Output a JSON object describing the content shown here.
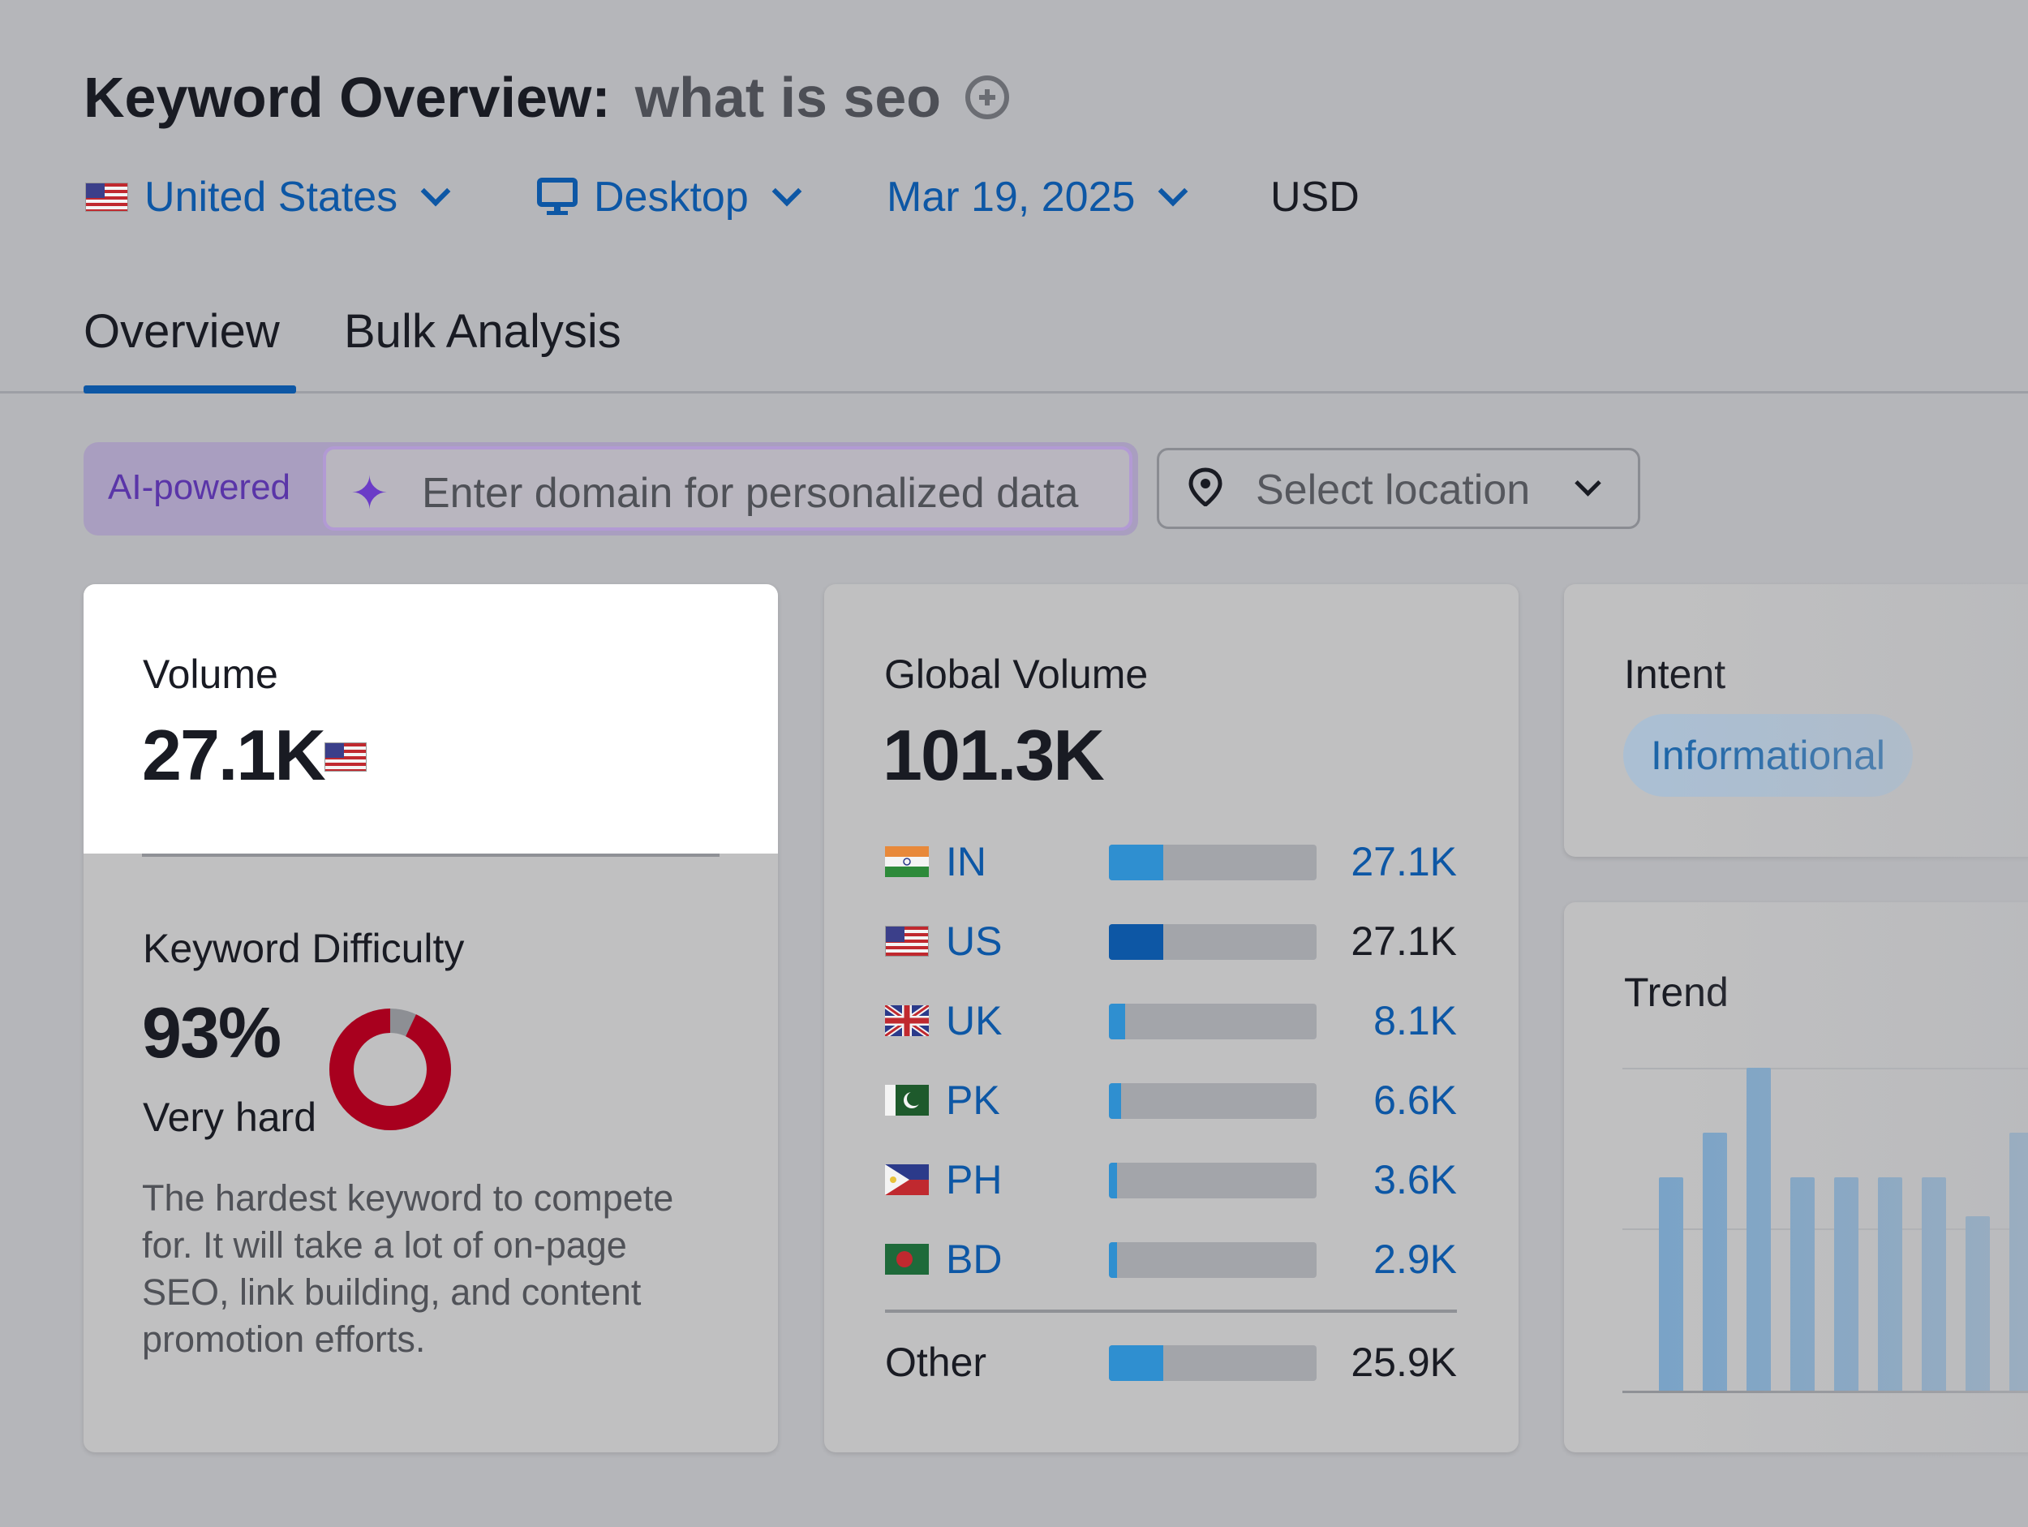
{
  "header": {
    "title": "Keyword Overview:",
    "keyword": "what is seo",
    "database": "United States",
    "device": "Desktop",
    "date": "Mar 19, 2025",
    "currency": "USD"
  },
  "tabs": [
    {
      "label": "Overview",
      "active": true
    },
    {
      "label": "Bulk Analysis",
      "active": false
    }
  ],
  "personalization": {
    "badge": "AI-powered",
    "domain_placeholder": "Enter domain for personalized data",
    "location_placeholder": "Select location"
  },
  "volume": {
    "label": "Volume",
    "value": "27.1K"
  },
  "keyword_difficulty": {
    "label": "Keyword Difficulty",
    "value": "93%",
    "percent": 93,
    "level": "Very hard",
    "description": "The hardest keyword to compete for. It will take a lot of on-page SEO, link building, and content promotion efforts.",
    "color": "#a8001e"
  },
  "global_volume": {
    "label": "Global Volume",
    "value": "101.3K",
    "countries": [
      {
        "code": "IN",
        "value": "27.1K",
        "share": 0.26,
        "link": true
      },
      {
        "code": "US",
        "value": "27.1K",
        "share": 0.26,
        "link": false
      },
      {
        "code": "UK",
        "value": "8.1K",
        "share": 0.08,
        "link": true
      },
      {
        "code": "PK",
        "value": "6.6K",
        "share": 0.06,
        "link": true
      },
      {
        "code": "PH",
        "value": "3.6K",
        "share": 0.04,
        "link": true
      },
      {
        "code": "BD",
        "value": "2.9K",
        "share": 0.04,
        "link": true
      }
    ],
    "other": {
      "label": "Other",
      "value": "25.9K",
      "share": 0.26
    }
  },
  "intent": {
    "label": "Intent",
    "value": "Informational"
  },
  "trend": {
    "label": "Trend",
    "relative_values": [
      0.66,
      0.8,
      1.0,
      0.66,
      0.66,
      0.66,
      0.66,
      0.54,
      0.8
    ]
  },
  "colors": {
    "link": "#0d57a5",
    "bar_fill": "#2f8fd0",
    "bar_fill_us": "#0d57a5",
    "accent_tab": "#0d57a5",
    "ai_purple": "#5a35a8"
  }
}
